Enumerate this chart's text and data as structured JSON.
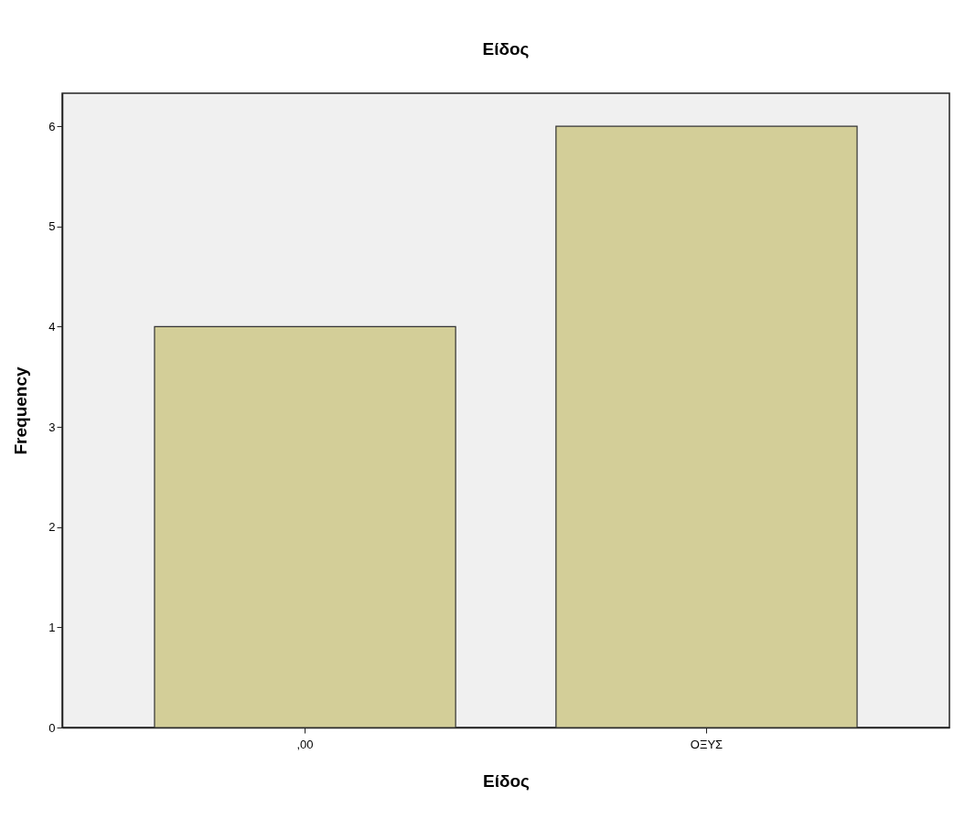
{
  "chart_data": {
    "type": "bar",
    "title": "Είδος",
    "xlabel": "Είδος",
    "ylabel": "Frequency",
    "categories": [
      ",00",
      "ΟΞΥΣ"
    ],
    "values": [
      4,
      6
    ],
    "color": "#d3ce98",
    "ylim": [
      0,
      6.33
    ],
    "yticks": [
      0,
      1,
      2,
      3,
      4,
      5,
      6
    ],
    "grid": false
  }
}
